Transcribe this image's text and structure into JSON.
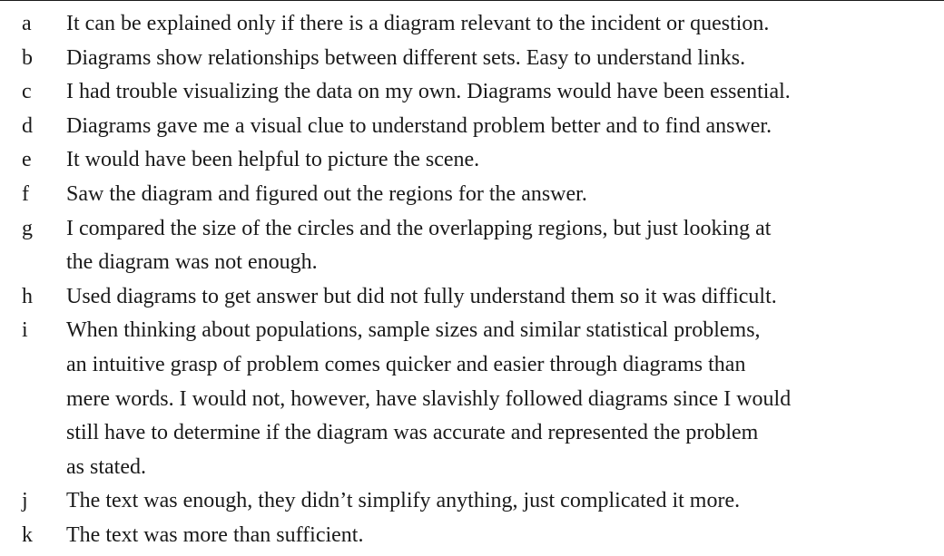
{
  "rows": [
    {
      "label": "a",
      "lines": [
        "It can be explained only if there is a diagram relevant to the incident or question."
      ]
    },
    {
      "label": "b",
      "lines": [
        "Diagrams show relationships between different sets. Easy to understand links."
      ]
    },
    {
      "label": "c",
      "lines": [
        "I had trouble visualizing the data on my own. Diagrams would have been essential."
      ]
    },
    {
      "label": "d",
      "lines": [
        "Diagrams gave me a visual clue to understand problem better and to find answer."
      ]
    },
    {
      "label": "e",
      "lines": [
        "It would have been helpful to picture the scene."
      ]
    },
    {
      "label": "f",
      "lines": [
        "Saw the diagram and figured out the regions for the answer."
      ]
    },
    {
      "label": "g",
      "lines": [
        "I compared the size of the circles and the overlapping regions, but just looking at",
        "the diagram was not enough."
      ]
    },
    {
      "label": "h",
      "lines": [
        "Used diagrams to get answer but did not fully understand them so it was difficult."
      ]
    },
    {
      "label": "i",
      "lines": [
        "When thinking about populations, sample sizes and similar statistical problems,",
        "an intuitive grasp of problem comes quicker and easier through diagrams than",
        "mere words. I would not, however, have slavishly followed diagrams since I would",
        "still have to determine if the diagram was accurate and represented the problem",
        "as stated."
      ]
    },
    {
      "label": "j",
      "lines": [
        "The text was enough, they didn’t simplify anything, just complicated it more."
      ]
    },
    {
      "label": "k",
      "lines": [
        "The text was more than sufficient."
      ]
    }
  ]
}
